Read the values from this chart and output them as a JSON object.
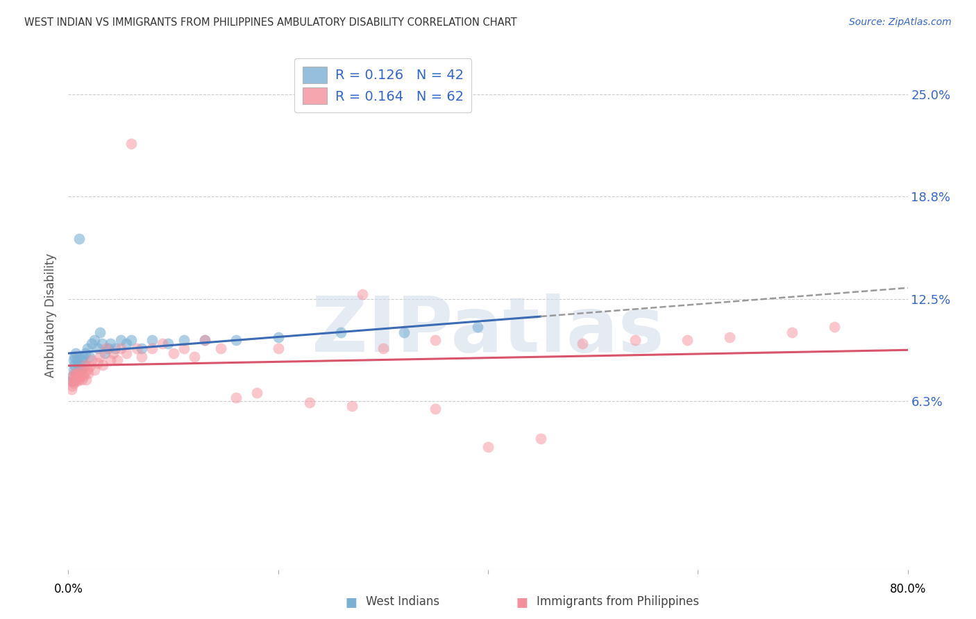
{
  "title": "WEST INDIAN VS IMMIGRANTS FROM PHILIPPINES AMBULATORY DISABILITY CORRELATION CHART",
  "source": "Source: ZipAtlas.com",
  "ylabel": "Ambulatory Disability",
  "ytick_labels": [
    "25.0%",
    "18.8%",
    "12.5%",
    "6.3%"
  ],
  "ytick_values": [
    0.25,
    0.188,
    0.125,
    0.063
  ],
  "xlim": [
    0.0,
    0.8
  ],
  "ylim": [
    -0.04,
    0.27
  ],
  "legend_r1": "R = 0.126",
  "legend_n1": "N = 42",
  "legend_r2": "R = 0.164",
  "legend_n2": "N = 62",
  "blue_color": "#7BAFD4",
  "pink_color": "#F4909A",
  "blue_line_color": "#3B6BB5",
  "pink_line_color": "#D9536A",
  "dash_color": "#999999",
  "watermark_text": "ZIPatlas",
  "label_color": "#3366CC",
  "wi_x": [
    0.003,
    0.004,
    0.005,
    0.005,
    0.006,
    0.006,
    0.007,
    0.007,
    0.008,
    0.009,
    0.01,
    0.01,
    0.011,
    0.012,
    0.013,
    0.014,
    0.015,
    0.016,
    0.018,
    0.02,
    0.022,
    0.025,
    0.028,
    0.03,
    0.032,
    0.035,
    0.038,
    0.04,
    0.045,
    0.05,
    0.055,
    0.06,
    0.07,
    0.08,
    0.095,
    0.11,
    0.13,
    0.16,
    0.2,
    0.26,
    0.32,
    0.39
  ],
  "wi_y": [
    0.075,
    0.078,
    0.082,
    0.088,
    0.085,
    0.09,
    0.08,
    0.092,
    0.088,
    0.085,
    0.162,
    0.09,
    0.085,
    0.082,
    0.088,
    0.09,
    0.085,
    0.092,
    0.095,
    0.09,
    0.098,
    0.1,
    0.095,
    0.105,
    0.098,
    0.092,
    0.095,
    0.098,
    0.095,
    0.1,
    0.098,
    0.1,
    0.095,
    0.1,
    0.098,
    0.1,
    0.1,
    0.1,
    0.102,
    0.105,
    0.105,
    0.108
  ],
  "ph_x": [
    0.003,
    0.004,
    0.004,
    0.005,
    0.005,
    0.006,
    0.006,
    0.007,
    0.007,
    0.008,
    0.008,
    0.009,
    0.01,
    0.01,
    0.011,
    0.012,
    0.013,
    0.014,
    0.015,
    0.016,
    0.017,
    0.018,
    0.019,
    0.02,
    0.022,
    0.025,
    0.028,
    0.03,
    0.033,
    0.036,
    0.04,
    0.043,
    0.047,
    0.05,
    0.055,
    0.06,
    0.065,
    0.07,
    0.08,
    0.09,
    0.1,
    0.11,
    0.12,
    0.13,
    0.145,
    0.16,
    0.18,
    0.2,
    0.23,
    0.27,
    0.3,
    0.35,
    0.4,
    0.45,
    0.49,
    0.54,
    0.59,
    0.63,
    0.69,
    0.73,
    0.28,
    0.35
  ],
  "ph_y": [
    0.07,
    0.075,
    0.072,
    0.078,
    0.074,
    0.08,
    0.075,
    0.078,
    0.076,
    0.08,
    0.075,
    0.078,
    0.076,
    0.08,
    0.078,
    0.082,
    0.076,
    0.078,
    0.08,
    0.085,
    0.076,
    0.082,
    0.08,
    0.084,
    0.088,
    0.082,
    0.086,
    0.09,
    0.085,
    0.095,
    0.088,
    0.092,
    0.088,
    0.095,
    0.092,
    0.22,
    0.095,
    0.09,
    0.095,
    0.098,
    0.092,
    0.095,
    0.09,
    0.1,
    0.095,
    0.065,
    0.068,
    0.095,
    0.062,
    0.06,
    0.095,
    0.1,
    0.035,
    0.04,
    0.098,
    0.1,
    0.1,
    0.102,
    0.105,
    0.108,
    0.128,
    0.058
  ]
}
